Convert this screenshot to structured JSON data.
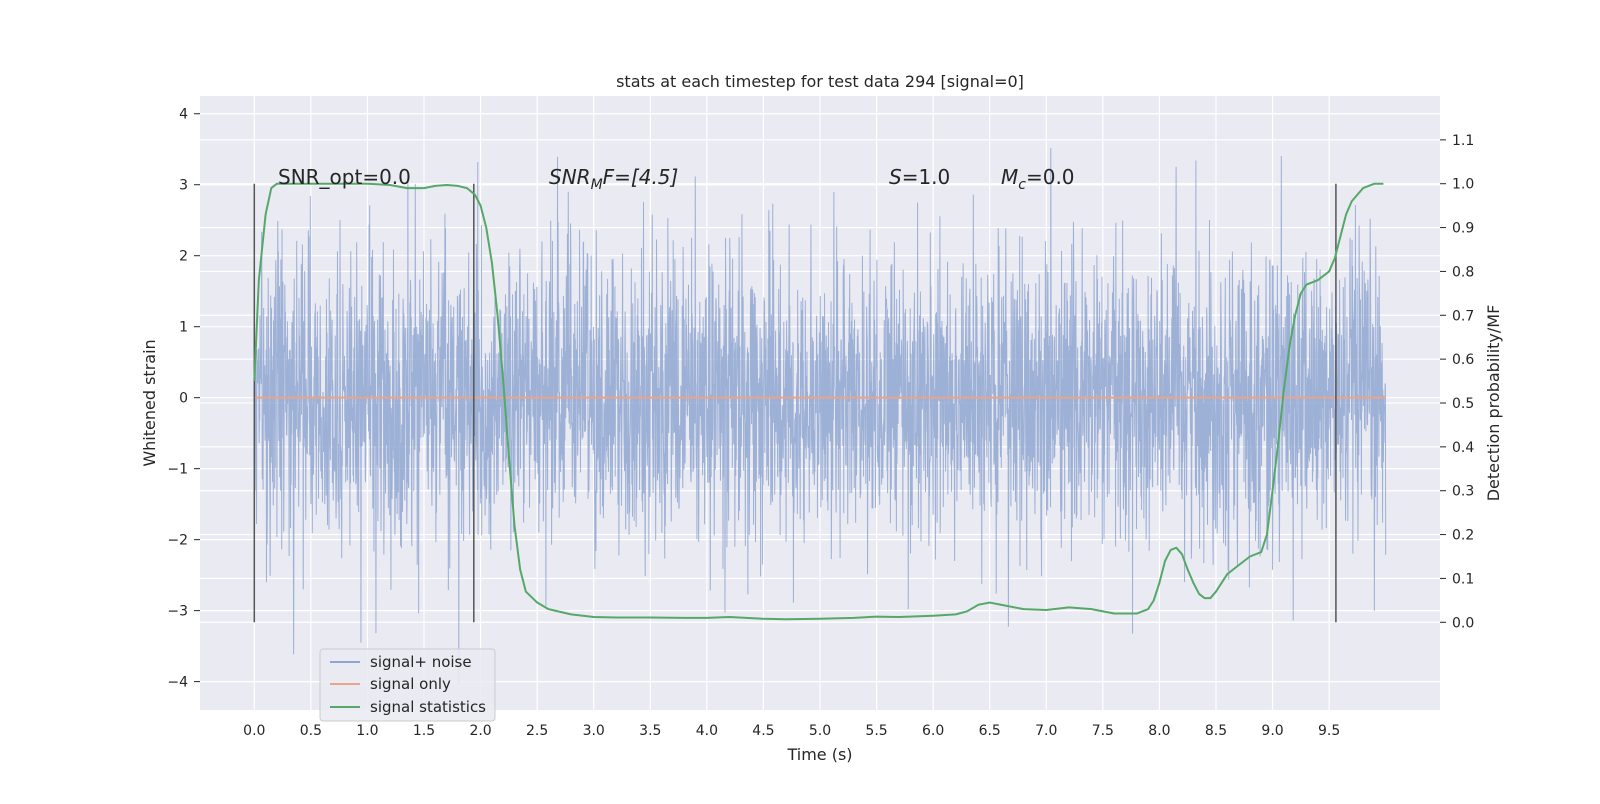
{
  "chart_data": {
    "type": "line",
    "title": "stats at each timestep for test data 294 [signal=0]",
    "xlabel": "Time (s)",
    "ylabel_left": "Whitened strain",
    "ylabel_right": "Detection probability/MF",
    "xlim": [
      -0.48,
      10.48
    ],
    "ylim_left": [
      -4.4,
      4.25
    ],
    "ylim_right": [
      -0.2,
      1.2
    ],
    "x_ticks": [
      "0.0",
      "0.5",
      "1.0",
      "1.5",
      "2.0",
      "2.5",
      "3.0",
      "3.5",
      "4.0",
      "4.5",
      "5.0",
      "5.5",
      "6.0",
      "6.5",
      "7.0",
      "7.5",
      "8.0",
      "8.5",
      "9.0",
      "9.5"
    ],
    "y_ticks_left": [
      4,
      3,
      2,
      1,
      0,
      -1,
      -2,
      -3,
      -4
    ],
    "y_ticks_left_labels": [
      "4",
      "3",
      "2",
      "1",
      "0",
      "−1",
      "−2",
      "−3",
      "−4"
    ],
    "y_ticks_right": [
      "0.0",
      "0.1",
      "0.2",
      "0.3",
      "0.4",
      "0.5",
      "0.6",
      "0.7",
      "0.8",
      "0.9",
      "1.0",
      "1.1"
    ],
    "grid": true,
    "legend_placement": "lower-left",
    "annotations": {
      "snr_opt": "SNR_opt=0.0",
      "snr_mf_base": "SNR",
      "snr_mf_sub": "M",
      "snr_mf_tail": "F=[4.5]",
      "s_var": "S",
      "s_val": "=1.0",
      "mc_var": "M",
      "mc_sub": "c",
      "mc_val": "=0.0"
    },
    "vertical_markers_x": [
      0.0,
      1.94,
      9.56
    ],
    "series": [
      {
        "name": "signal+ noise",
        "color": "#8fa6d1",
        "x_range": [
          0.0,
          10.0
        ],
        "typical_amplitude": 1.0,
        "max": 3.88,
        "min": -4.03
      },
      {
        "name": "signal only",
        "color": "#e8a58a",
        "x": [
          0.0,
          10.0
        ],
        "y": [
          0.0,
          0.0
        ]
      },
      {
        "name": "signal statistics",
        "color": "#55a868",
        "axis": "right",
        "x": [
          0.0,
          0.04,
          0.1,
          0.15,
          0.2,
          0.3,
          0.4,
          0.6,
          0.8,
          1.0,
          1.2,
          1.35,
          1.5,
          1.6,
          1.7,
          1.8,
          1.88,
          1.95,
          2.0,
          2.05,
          2.1,
          2.15,
          2.2,
          2.25,
          2.3,
          2.35,
          2.4,
          2.5,
          2.6,
          2.8,
          3.0,
          3.2,
          3.5,
          3.8,
          4.0,
          4.2,
          4.5,
          4.7,
          5.0,
          5.3,
          5.5,
          5.7,
          6.0,
          6.2,
          6.3,
          6.4,
          6.5,
          6.6,
          6.8,
          7.0,
          7.2,
          7.4,
          7.6,
          7.8,
          7.9,
          7.95,
          8.0,
          8.05,
          8.1,
          8.15,
          8.2,
          8.25,
          8.3,
          8.35,
          8.4,
          8.45,
          8.5,
          8.55,
          8.6,
          8.7,
          8.8,
          8.9,
          8.95,
          9.0,
          9.05,
          9.1,
          9.15,
          9.2,
          9.25,
          9.3,
          9.4,
          9.5,
          9.55,
          9.6,
          9.65,
          9.7,
          9.8,
          9.9,
          9.98
        ],
        "y": [
          0.55,
          0.78,
          0.93,
          0.99,
          1.0,
          1.0,
          1.0,
          1.0,
          1.0,
          1.0,
          0.997,
          0.99,
          0.99,
          0.995,
          0.997,
          0.995,
          0.99,
          0.975,
          0.95,
          0.9,
          0.82,
          0.7,
          0.55,
          0.38,
          0.22,
          0.12,
          0.07,
          0.045,
          0.03,
          0.018,
          0.012,
          0.011,
          0.011,
          0.01,
          0.01,
          0.012,
          0.008,
          0.007,
          0.008,
          0.01,
          0.013,
          0.012,
          0.015,
          0.018,
          0.025,
          0.04,
          0.045,
          0.04,
          0.03,
          0.028,
          0.034,
          0.03,
          0.02,
          0.02,
          0.03,
          0.05,
          0.09,
          0.14,
          0.165,
          0.17,
          0.155,
          0.12,
          0.09,
          0.065,
          0.055,
          0.055,
          0.07,
          0.09,
          0.11,
          0.13,
          0.15,
          0.16,
          0.2,
          0.3,
          0.41,
          0.53,
          0.63,
          0.7,
          0.75,
          0.77,
          0.78,
          0.8,
          0.83,
          0.88,
          0.93,
          0.96,
          0.99,
          1.0,
          1.0
        ]
      }
    ]
  }
}
